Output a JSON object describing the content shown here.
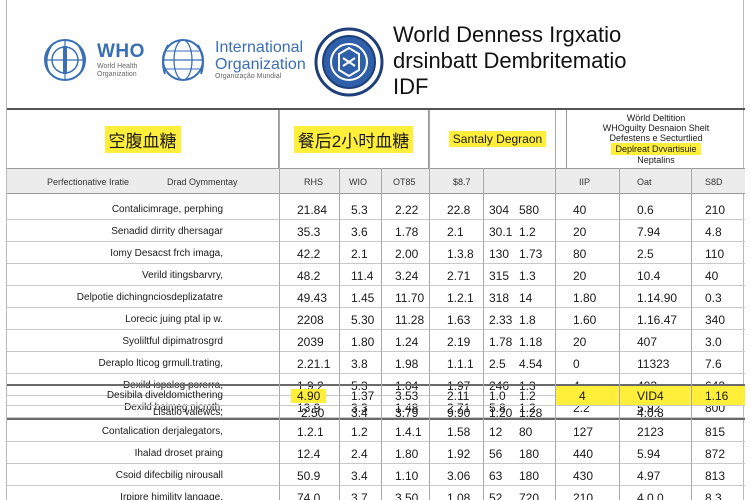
{
  "header": {
    "who_logo": {
      "name": "WHO",
      "sub1": "World Health",
      "sub2": "Organization"
    },
    "int_logo": {
      "line1": "International",
      "line2": "Organization",
      "sub": "Organização Mundial"
    },
    "title_lines": [
      "World Denness Irgxatio",
      "drsinbatt Dembritematio",
      "IDF"
    ]
  },
  "bands": {
    "fasting": "空腹血糖",
    "postprandial": "餐后2小时血糖",
    "sanitary": "Santaly Degraon",
    "right": [
      "Wörld Deltition",
      "WHOguilty Desnaion Shelt",
      "Defestens e Secturtlied",
      "Deplreat Dvvartisuie",
      "Neptalins"
    ]
  },
  "colhead": [
    "Perfectionative Iratie",
    "Drad Oymmentay",
    "RHS",
    "WIO",
    "OT85",
    "$8.7",
    "IIP",
    "Oat",
    "S8D"
  ],
  "rows": [
    {
      "label": "Contalicimrage, perphing",
      "c": [
        "21.84",
        "5.3",
        "2.22",
        "22.8",
        "304",
        "580",
        "40",
        "0.6",
        "210"
      ]
    },
    {
      "label": "Senadid dirrity dhersagar",
      "c": [
        "35.3",
        "3.6",
        "1.78",
        "2.1",
        "30.1",
        "1.2",
        "20",
        "7.94",
        "4.8"
      ]
    },
    {
      "label": "Iomy Desacst frch imaga,",
      "c": [
        "42.2",
        "2.1",
        "2.00",
        "1.3.8",
        "130",
        "1.73",
        "80",
        "2.5",
        "110"
      ]
    },
    {
      "label": "Verild itingsbarvry,",
      "c": [
        "48.2",
        "11.4",
        "3.24",
        "2.71",
        "315",
        "1.3",
        "20",
        "10.4",
        "40"
      ]
    },
    {
      "label": "Delpotie dichingnciosdeplizatatre",
      "c": [
        "49.43",
        "1.45",
        "11.70",
        "1.2.1",
        "318",
        "14",
        "1.80",
        "1.14.90",
        "0.3"
      ]
    },
    {
      "label": "Lorecic juing ptal ip w.",
      "c": [
        "2208",
        "5.30",
        "11.28",
        "1.63",
        "2.33",
        "1.8",
        "1.60",
        "1.16.47",
        "340"
      ]
    },
    {
      "label": "Syoliltful dipimatrosgrd",
      "c": [
        "2039",
        "1.80",
        "1.24",
        "2.19",
        "1.78",
        "1.18",
        "20",
        "407",
        "3.0"
      ]
    },
    {
      "label": "Deraplo lticog grmull.trating,",
      "c": [
        "2.21.1",
        "3.8",
        "1.98",
        "1.1.1",
        "2.5",
        "4.54",
        "0",
        "11323",
        "7.6"
      ]
    },
    {
      "label": "Dexild ispalog porerra,",
      "c": [
        "1.9.2",
        "5.3",
        "1.04",
        "1.97",
        "246",
        "1.3",
        "4",
        "403",
        "642"
      ]
    },
    {
      "label": "Dexild baimeg nicroth,",
      "c": [
        "13.9",
        "3.3",
        "1.48",
        "2.71",
        "5.8",
        "1.2",
        "2.2",
        "5.92",
        "800"
      ]
    },
    {
      "label": "Desibila diveldomicthering",
      "c": [
        "4.90",
        "1.37",
        "3.53",
        "2.11",
        "1.0",
        "1.2",
        "4",
        "VID4",
        "1.16"
      ]
    },
    {
      "label": "Lisatio vaiewcs,",
      "c": [
        "2.50",
        "3.4",
        "3.79",
        "9.90",
        "1.20",
        "1.28",
        "",
        "4.0.8",
        ""
      ]
    },
    {
      "label": "Contalication derjalegators,",
      "c": [
        "1.2.1",
        "1.2",
        "1.4.1",
        "1.58",
        "12",
        "80",
        "127",
        "2123",
        "815"
      ]
    },
    {
      "label": "Ihalad droset praing",
      "c": [
        "12.4",
        "2.4",
        "1.80",
        "1.92",
        "56",
        "180",
        "440",
        "5.94",
        "872"
      ]
    },
    {
      "label": "Csoid difecbilig nirousall",
      "c": [
        "50.9",
        "3.4",
        "1.10",
        "3.06",
        "63",
        "180",
        "430",
        "4.97",
        "813"
      ]
    },
    {
      "label": "Irpipre himility langage,",
      "c": [
        "74.0",
        "3.7",
        "3.50",
        "1.08",
        "52",
        "720",
        "210",
        "4.0.0",
        "8.3"
      ]
    }
  ]
}
